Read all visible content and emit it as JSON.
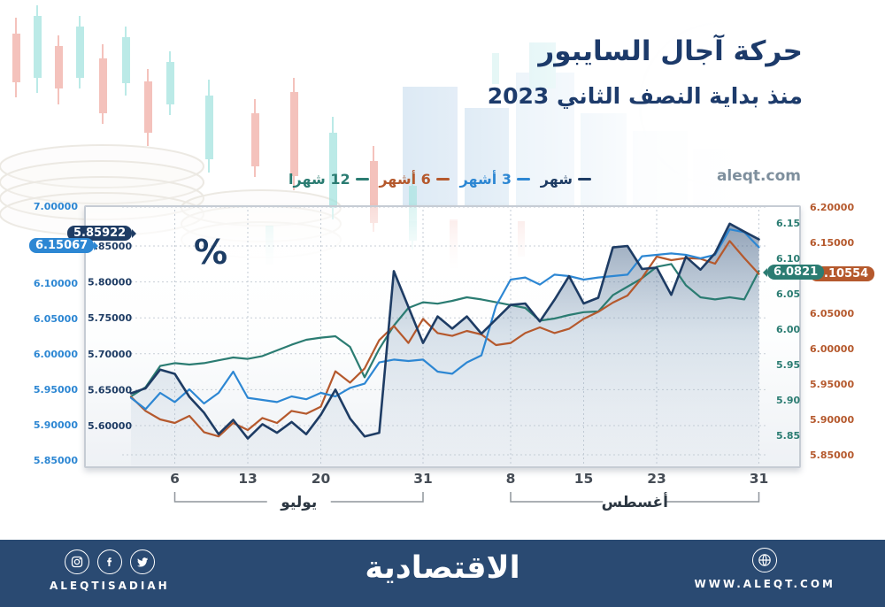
{
  "header": {
    "title": "حركة آجال السايبور",
    "subtitle": "منذ بداية النصف الثاني 2023",
    "website": "aleqt.com"
  },
  "legend": {
    "items": [
      {
        "label": "12 شهرا",
        "color": "#2b7c72"
      },
      {
        "label": "6 أشهر",
        "color": "#b5592d"
      },
      {
        "label": "3 أشهر",
        "color": "#2d87d3"
      },
      {
        "label": "شهر",
        "color": "#1e3c64"
      }
    ]
  },
  "chart_data": {
    "type": "line",
    "title": "حركة آجال السايبور منذ بداية النصف الثاني 2023",
    "unit_label": "%",
    "x_axis": {
      "tick_labels": [
        "6",
        "13",
        "20",
        "31",
        "8",
        "15",
        "23",
        "31"
      ],
      "tick_indices": [
        3,
        8,
        13,
        20,
        26,
        31,
        36,
        43
      ],
      "month_brackets": [
        {
          "label": "يوليو",
          "from_index": 3,
          "to_index": 20
        },
        {
          "label": "أغسطس",
          "from_index": 26,
          "to_index": 43
        }
      ]
    },
    "axes": {
      "left_outer": {
        "series": "3 أشهر",
        "color": "#2d87d3",
        "top_label": "7.00000",
        "tick_labels": [
          "6.10000",
          "6.05000",
          "6.00000",
          "5.95000",
          "5.90000",
          "5.85000"
        ],
        "tick_values": [
          6.1,
          6.05,
          6.0,
          5.95,
          5.9,
          5.85
        ]
      },
      "left_inner": {
        "series": "شهر",
        "color": "#1e3c64",
        "tick_labels": [
          "5.85000",
          "5.80000",
          "5.75000",
          "5.70000",
          "5.65000",
          "5.60000"
        ],
        "tick_values": [
          5.85,
          5.8,
          5.75,
          5.7,
          5.65,
          5.6
        ]
      },
      "right_inner": {
        "series": "12 شهرا",
        "color": "#2b7c72",
        "tick_labels": [
          "6.15",
          "6.10",
          "6.05",
          "6.00",
          "5.95",
          "5.90",
          "5.85"
        ],
        "tick_values": [
          6.15,
          6.1,
          6.05,
          6.0,
          5.95,
          5.9,
          5.85
        ]
      },
      "right_outer": {
        "series": "6 أشهر",
        "color": "#b5592d",
        "tick_labels": [
          "6.20000",
          "6.15000",
          "6.05000",
          "6.00000",
          "5.95000",
          "5.90000",
          "5.85000"
        ],
        "tick_values": [
          6.2,
          6.15,
          6.05,
          6.0,
          5.95,
          5.9,
          5.85
        ]
      }
    },
    "series": [
      {
        "key": "m1",
        "name": "شهر",
        "color": "#1e3c64",
        "axis": "left_inner",
        "area": true,
        "last_label": "5.85922",
        "values": [
          5.645,
          5.652,
          5.678,
          5.672,
          5.64,
          5.618,
          5.588,
          5.608,
          5.582,
          5.602,
          5.59,
          5.605,
          5.588,
          5.615,
          5.65,
          5.61,
          5.585,
          5.59,
          5.815,
          5.765,
          5.715,
          5.752,
          5.735,
          5.752,
          5.728,
          5.748,
          5.768,
          5.77,
          5.745,
          5.775,
          5.808,
          5.77,
          5.778,
          5.848,
          5.85,
          5.818,
          5.82,
          5.782,
          5.835,
          5.817,
          5.84,
          5.881,
          5.87,
          5.85922
        ]
      },
      {
        "key": "m3",
        "name": "3 أشهر",
        "color": "#2d87d3",
        "axis": "left_outer",
        "area": false,
        "last_label": "6.15067",
        "values": [
          5.938,
          5.922,
          5.945,
          5.932,
          5.95,
          5.93,
          5.945,
          5.975,
          5.938,
          5.935,
          5.932,
          5.94,
          5.936,
          5.945,
          5.94,
          5.952,
          5.958,
          5.988,
          5.992,
          5.99,
          5.992,
          5.975,
          5.972,
          5.988,
          5.998,
          6.068,
          6.105,
          6.108,
          6.098,
          6.112,
          6.11,
          6.105,
          6.108,
          6.11,
          6.112,
          6.138,
          6.14,
          6.142,
          6.14,
          6.135,
          6.14,
          6.176,
          6.172,
          6.15067
        ]
      },
      {
        "key": "m6",
        "name": "6 أشهر",
        "color": "#b5592d",
        "axis": "right_outer",
        "area": false,
        "last_label": "6.10554",
        "values": [
          5.932,
          5.912,
          5.9,
          5.895,
          5.905,
          5.882,
          5.876,
          5.895,
          5.885,
          5.902,
          5.895,
          5.912,
          5.908,
          5.918,
          5.968,
          5.952,
          5.972,
          6.012,
          6.032,
          6.008,
          6.042,
          6.022,
          6.018,
          6.025,
          6.02,
          6.005,
          6.008,
          6.022,
          6.03,
          6.022,
          6.028,
          6.042,
          6.052,
          6.065,
          6.075,
          6.1,
          6.13,
          6.125,
          6.128,
          6.127,
          6.12,
          6.152,
          6.128,
          6.10554
        ]
      },
      {
        "key": "m12",
        "name": "12 شهرا",
        "color": "#2b7c72",
        "axis": "right_inner",
        "area": false,
        "last_label": "6.0821",
        "values": [
          5.905,
          5.918,
          5.948,
          5.952,
          5.95,
          5.952,
          5.956,
          5.96,
          5.958,
          5.962,
          5.97,
          5.978,
          5.985,
          5.988,
          5.99,
          5.975,
          5.932,
          5.972,
          6.005,
          6.03,
          6.038,
          6.036,
          6.04,
          6.045,
          6.042,
          6.038,
          6.034,
          6.03,
          6.012,
          6.015,
          6.02,
          6.024,
          6.025,
          6.048,
          6.06,
          6.072,
          6.088,
          6.092,
          6.062,
          6.045,
          6.042,
          6.045,
          6.042,
          6.0821
        ]
      }
    ]
  },
  "footer": {
    "brand_handle": "ALEQTISADIAH",
    "logo_text": "الاقتصادية",
    "website_url": "WWW.ALEQT.COM",
    "icons": [
      "instagram-icon",
      "facebook-icon",
      "twitter-icon",
      "globe-icon"
    ],
    "bg_color": "#2a4a72"
  }
}
